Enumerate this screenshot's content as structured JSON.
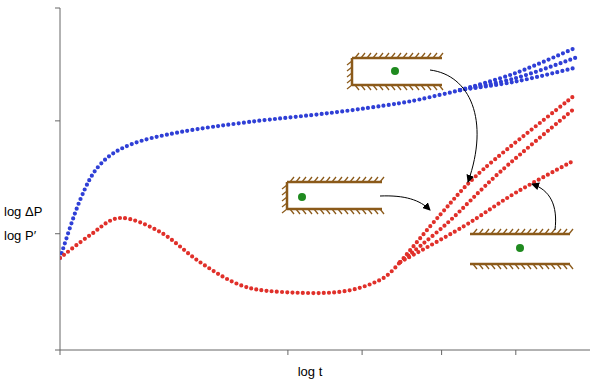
{
  "chart_data": {
    "type": "line",
    "x_label": "log t",
    "y_label": [
      "log ΔP",
      "log P′"
    ],
    "xlim": [
      0,
      10
    ],
    "ylim": [
      0,
      10
    ],
    "xticks": [
      0,
      4.3,
      5.7,
      7.2,
      8.6
    ],
    "yticks": [
      0,
      3.4,
      6.7,
      10
    ],
    "tick_labels": false,
    "grid": false,
    "series": [
      {
        "color": "#2f3fd6",
        "line_style": "dotted",
        "x": [
          0,
          0.38,
          0.75,
          1.32,
          2.26,
          3.58,
          5.09,
          6.42,
          7.17,
          7.55
        ],
        "values": [
          2.69,
          4.39,
          5.41,
          6.0,
          6.37,
          6.67,
          6.93,
          7.22,
          7.46,
          7.6
        ]
      },
      {
        "color": "#2f3fd6",
        "line_style": "dotted",
        "x": [
          7.55,
          8.6,
          9.72
        ],
        "values": [
          7.6,
          8.1,
          8.83
        ]
      },
      {
        "color": "#2f3fd6",
        "line_style": "dotted",
        "x": [
          7.55,
          8.6,
          9.72
        ],
        "values": [
          7.6,
          7.95,
          8.54
        ]
      },
      {
        "color": "#2f3fd6",
        "line_style": "dotted",
        "x": [
          7.55,
          8.6,
          9.72
        ],
        "values": [
          7.6,
          7.85,
          8.25
        ]
      },
      {
        "color": "#e0302a",
        "line_style": "dotted",
        "x": [
          0,
          0.57,
          1.13,
          1.89,
          2.64,
          3.4,
          4.15,
          5.28,
          6.04,
          6.42
        ],
        "values": [
          2.69,
          3.36,
          3.86,
          3.45,
          2.57,
          1.9,
          1.7,
          1.7,
          2.05,
          2.57
        ]
      },
      {
        "color": "#e0302a",
        "line_style": "dotted",
        "x": [
          6.42,
          7.2,
          8.0,
          9.72
        ],
        "values": [
          2.57,
          4.0,
          5.3,
          7.46
        ]
      },
      {
        "color": "#e0302a",
        "line_style": "dotted",
        "x": [
          6.42,
          7.3,
          8.3,
          9.72
        ],
        "values": [
          2.57,
          3.7,
          5.2,
          7.08
        ]
      },
      {
        "color": "#e0302a",
        "line_style": "dotted",
        "x": [
          6.42,
          7.6,
          8.6,
          9.72
        ],
        "values": [
          2.57,
          3.6,
          4.6,
          5.56
        ]
      }
    ]
  }
}
